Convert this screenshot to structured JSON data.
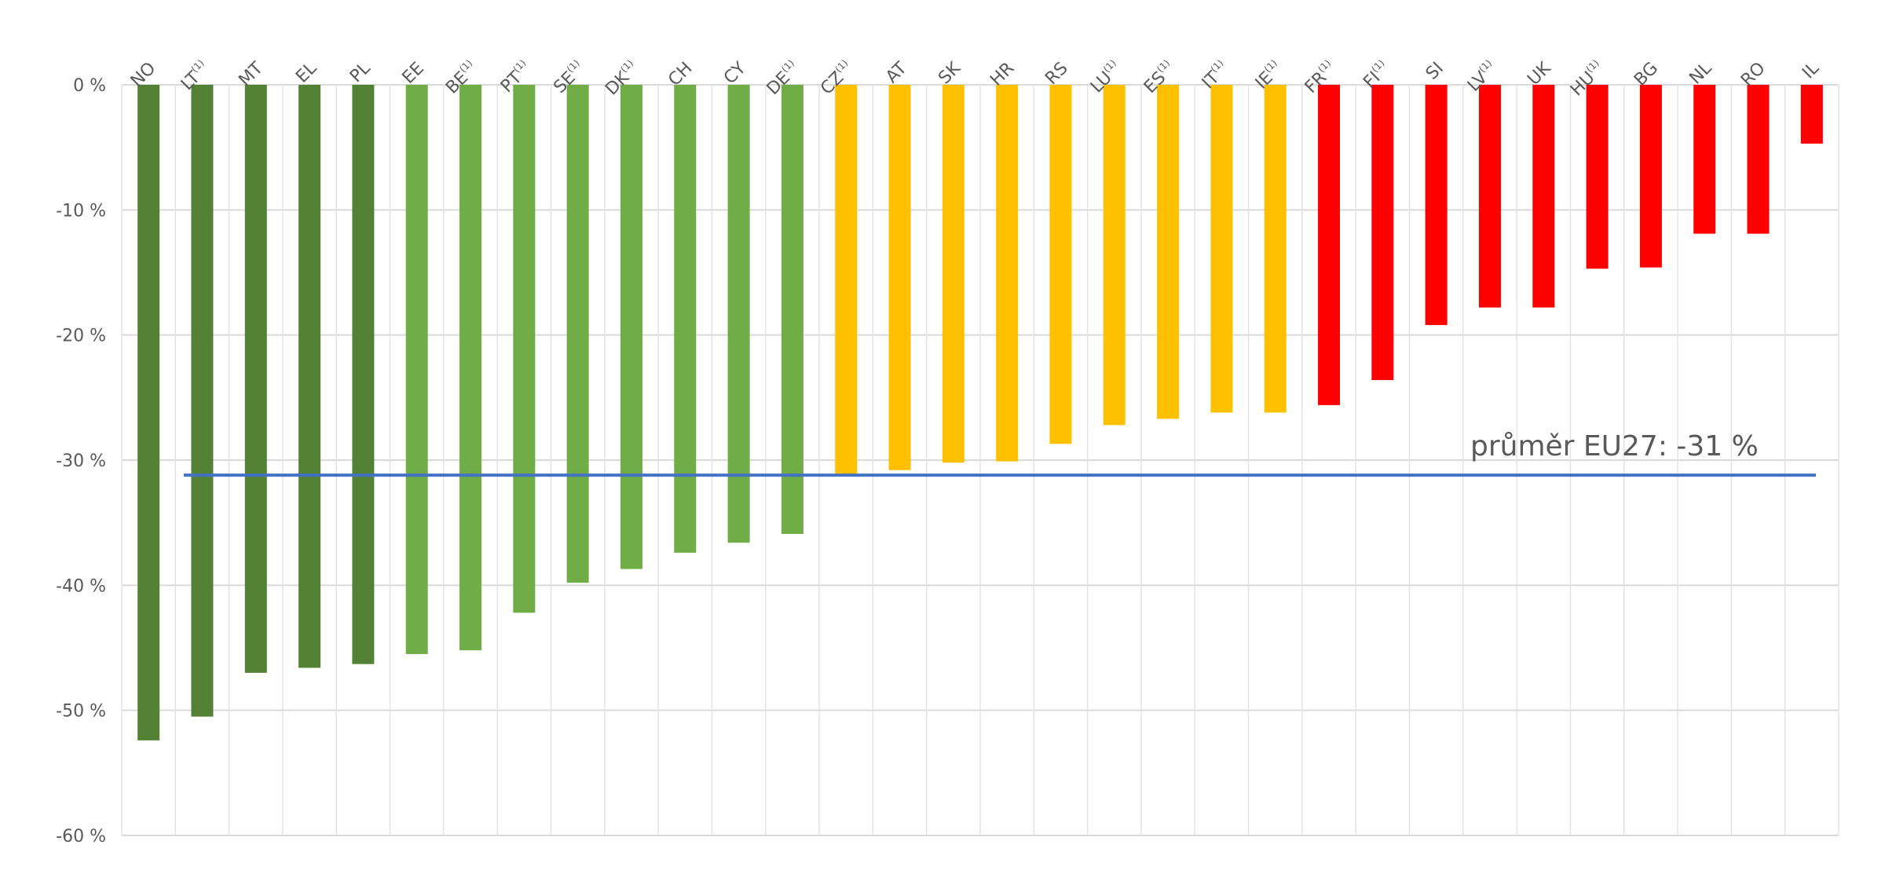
{
  "chart_data": {
    "type": "bar",
    "categories": [
      "NO",
      "LT",
      "MT",
      "EL",
      "PL",
      "EE",
      "BE",
      "PT",
      "SE",
      "DK",
      "CH",
      "CY",
      "DE",
      "CZ",
      "AT",
      "SK",
      "HR",
      "RS",
      "LU",
      "ES",
      "IT",
      "IE",
      "FR",
      "FI",
      "SI",
      "LV",
      "UK",
      "HU",
      "BG",
      "NL",
      "RO",
      "IL"
    ],
    "footnote_marker": "(1)",
    "footnoted": [
      "LT",
      "BE",
      "PT",
      "SE",
      "DK",
      "DE",
      "CZ",
      "LU",
      "ES",
      "IT",
      "IE",
      "FR",
      "FI",
      "LV",
      "HU"
    ],
    "values": [
      -52.4,
      -50.5,
      -47.0,
      -46.6,
      -46.3,
      -45.5,
      -45.2,
      -42.2,
      -39.8,
      -38.7,
      -37.4,
      -36.6,
      -35.9,
      -31.1,
      -30.8,
      -30.2,
      -30.1,
      -28.7,
      -27.2,
      -26.7,
      -26.2,
      -26.2,
      -25.6,
      -23.6,
      -19.2,
      -17.8,
      -17.8,
      -14.7,
      -14.6,
      -11.9,
      -11.9,
      -4.7
    ],
    "bar_colors": [
      "#548235",
      "#548235",
      "#548235",
      "#548235",
      "#548235",
      "#70ad47",
      "#70ad47",
      "#70ad47",
      "#70ad47",
      "#70ad47",
      "#70ad47",
      "#70ad47",
      "#70ad47",
      "#ffc000",
      "#ffc000",
      "#ffc000",
      "#ffc000",
      "#ffc000",
      "#ffc000",
      "#ffc000",
      "#ffc000",
      "#ffc000",
      "#ff0000",
      "#ff0000",
      "#ff0000",
      "#ff0000",
      "#ff0000",
      "#ff0000",
      "#ff0000",
      "#ff0000",
      "#ff0000",
      "#ff0000"
    ],
    "ylim": [
      -60,
      0
    ],
    "yticks": [
      0,
      -10,
      -20,
      -30,
      -40,
      -50,
      -60
    ],
    "ytick_labels": [
      "0 %",
      "-10 %",
      "-20 %",
      "-30 %",
      "-40 %",
      "-50 %",
      "-60 %"
    ],
    "xaxis_position": "top",
    "grid": true,
    "reference_line": {
      "value": -31.2,
      "label": "průměr EU27: -31 %",
      "color": "#4472c4"
    },
    "title": "",
    "xlabel": "",
    "ylabel": ""
  }
}
